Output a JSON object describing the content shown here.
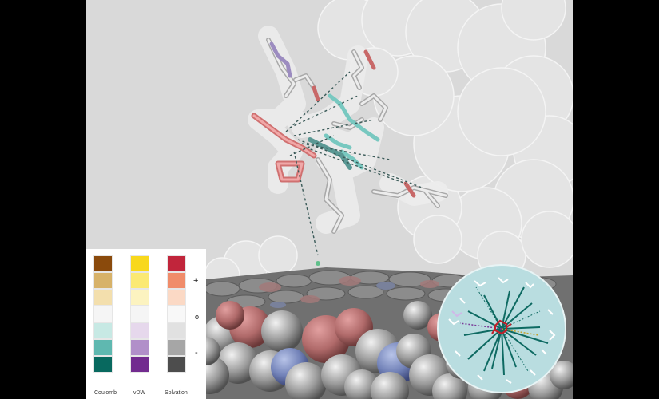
{
  "legend": {
    "columns": [
      {
        "label": "Coulomb",
        "colors": [
          "#8a4a0c",
          "#d7b269",
          "#f3dfad",
          "#f5f5f5",
          "#c7e9e4",
          "#5fb8b0",
          "#08695f"
        ]
      },
      {
        "label": "vDW",
        "colors": [
          "#f8d81c",
          "#fbe974",
          "#fcf3c0",
          "#f5f5f5",
          "#e6d8ec",
          "#b18fc9",
          "#722b8f"
        ]
      },
      {
        "label": "Solvation",
        "colors": [
          "#c1253b",
          "#f08c6a",
          "#fbd9c5",
          "#f8f8f8",
          "#e1e1e1",
          "#a6a6a6",
          "#4d4d4d"
        ]
      }
    ],
    "scale": {
      "plus": "+",
      "zero": "o",
      "minus": "-"
    }
  },
  "colors": {
    "background": "#d9d9d9",
    "frame": "#000000",
    "inset": "#b9dde0",
    "ligand_highlight": "#e07a78"
  }
}
